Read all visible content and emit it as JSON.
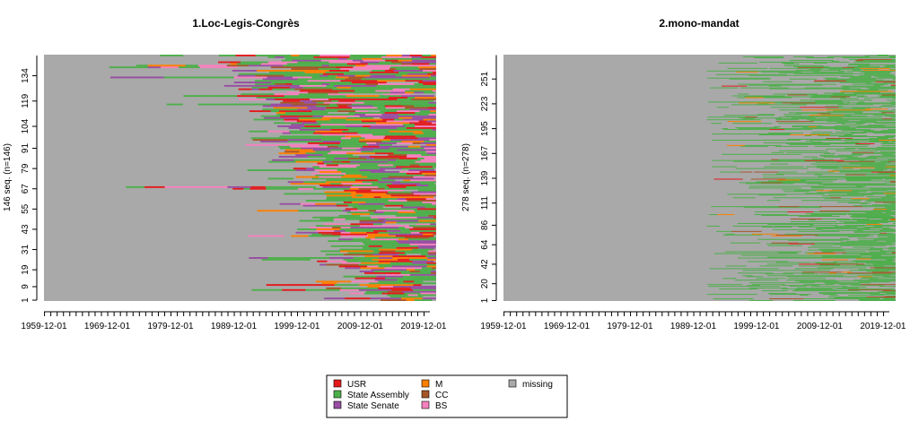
{
  "chart_data": [
    {
      "type": "sequence-index-plot",
      "title": "1.Loc-Legis-Congrès",
      "ylabel": "146 seq. (n=146)",
      "n_sequences": 146,
      "y_ticks": [
        "1",
        "9",
        "19",
        "31",
        "43",
        "55",
        "67",
        "79",
        "91",
        "104",
        "119",
        "134"
      ],
      "x_ticks": [
        "1959-12-01",
        "1969-12-01",
        "1979-12-01",
        "1989-12-01",
        "1999-12-01",
        "2009-12-01",
        "2019-12-01"
      ],
      "x_range": [
        "1959-12-01",
        "2021-12-01"
      ]
    },
    {
      "type": "sequence-index-plot",
      "title": "2.mono-mandat",
      "ylabel": "278 seq. (n=278)",
      "n_sequences": 278,
      "y_ticks": [
        "1",
        "20",
        "42",
        "64",
        "86",
        "111",
        "139",
        "167",
        "195",
        "223",
        "251"
      ],
      "x_ticks": [
        "1959-12-01",
        "1969-12-01",
        "1979-12-01",
        "1989-12-01",
        "1999-12-01",
        "2009-12-01",
        "2019-12-01"
      ],
      "x_range": [
        "1959-12-01",
        "2021-12-01"
      ]
    }
  ],
  "legend": {
    "items": [
      {
        "label": "USR",
        "color": "#E41A1C"
      },
      {
        "label": "State Assembly",
        "color": "#4DAF4A"
      },
      {
        "label": "State Senate",
        "color": "#984EA3"
      },
      {
        "label": "M",
        "color": "#FF7F00"
      },
      {
        "label": "CC",
        "color": "#A65628"
      },
      {
        "label": "BS",
        "color": "#F781BF"
      },
      {
        "label": "missing",
        "color": "#A9A9A9"
      }
    ]
  },
  "colors": {
    "missing": "#A9A9A9"
  }
}
